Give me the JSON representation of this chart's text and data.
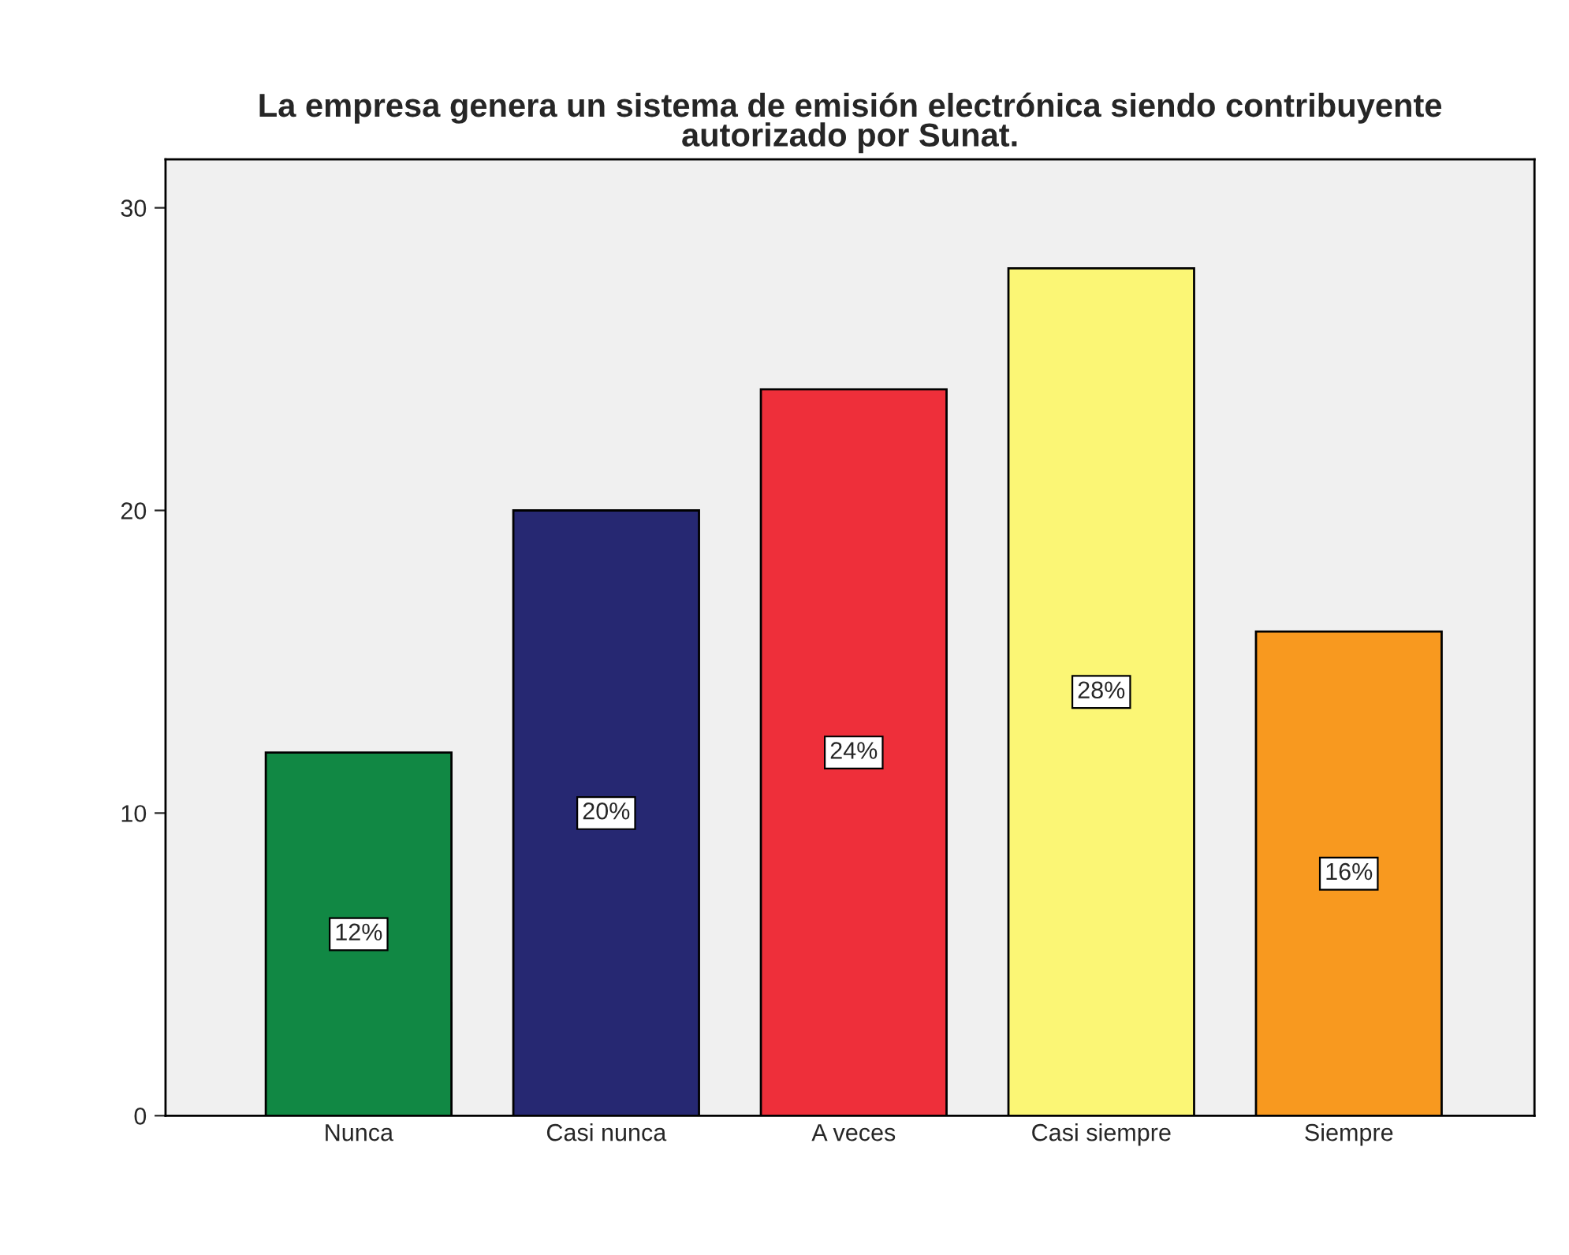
{
  "chart_data": {
    "type": "bar",
    "title": "La empresa genera un sistema de emisión electrónica siendo contribuyente\nautorizado por Sunat.",
    "categories": [
      "Nunca",
      "Casi nunca",
      "A veces",
      "Casi siempre",
      "Siempre"
    ],
    "values": [
      12,
      20,
      24,
      28,
      16
    ],
    "colors": [
      "#118844",
      "#262872",
      "#ee2f3a",
      "#fbf675",
      "#f8991f"
    ],
    "value_labels": [
      "12%",
      "20%",
      "24%",
      "28%",
      "16%"
    ],
    "ylim": [
      0,
      31.6
    ],
    "yticks": [
      0,
      10,
      20,
      30
    ],
    "grid": false,
    "legend": false
  }
}
